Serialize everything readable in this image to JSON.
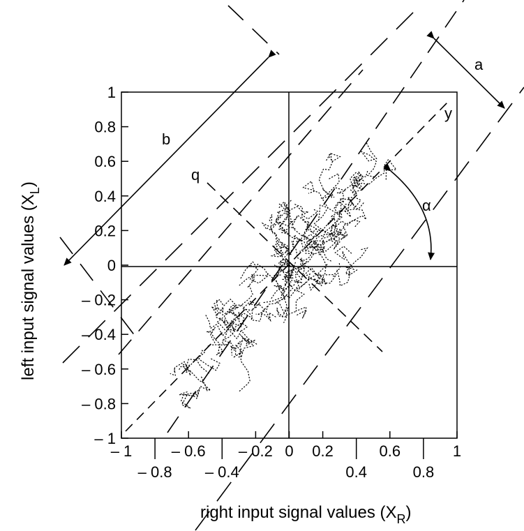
{
  "chart_data": {
    "type": "scatter",
    "xlabel": "right input signal values (X",
    "xlabel_sub": "R",
    "ylabel": "left input signal values (X",
    "ylabel_sub": "L",
    "xlim": [
      -1,
      1
    ],
    "ylim": [
      -1,
      1
    ],
    "grid": false,
    "xticks_upper": [
      {
        "v": -1,
        "label": "– 1"
      },
      {
        "v": -0.6,
        "label": "– 0.6"
      },
      {
        "v": -0.2,
        "label": "– 0.2"
      },
      {
        "v": 0,
        "label": "0"
      },
      {
        "v": 0.2,
        "label": "0.2"
      },
      {
        "v": 0.6,
        "label": "0.6"
      },
      {
        "v": 1,
        "label": "1"
      }
    ],
    "xticks_lower": [
      {
        "v": -0.8,
        "label": "– 0.8"
      },
      {
        "v": -0.4,
        "label": "– 0.4"
      },
      {
        "v": 0.4,
        "label": "0.4"
      },
      {
        "v": 0.8,
        "label": "0.8"
      }
    ],
    "yticks": [
      {
        "v": 1,
        "label": "1"
      },
      {
        "v": 0.8,
        "label": "0.8"
      },
      {
        "v": 0.6,
        "label": "0.6"
      },
      {
        "v": 0.4,
        "label": "0.4"
      },
      {
        "v": 0.2,
        "label": "0.2"
      },
      {
        "v": 0,
        "label": "0"
      },
      {
        "v": -0.2,
        "label": "– 0.2"
      },
      {
        "v": -0.4,
        "label": "– 0.4"
      },
      {
        "v": -0.6,
        "label": "– 0.6"
      },
      {
        "v": -0.8,
        "label": "– 0.8"
      },
      {
        "v": -1,
        "label": "– 1"
      }
    ],
    "annotations": {
      "a": "a",
      "b": "b",
      "q": "q",
      "y": "y",
      "alpha": "α"
    },
    "cluster": {
      "description_free": true,
      "main_axis_slope": 1,
      "centers": [
        [
          0.2,
          0.2
        ],
        [
          -0.3,
          -0.3
        ],
        [
          0.0,
          0.0
        ],
        [
          0.35,
          0.45
        ],
        [
          -0.5,
          -0.55
        ],
        [
          0.15,
          -0.1
        ],
        [
          -0.1,
          0.15
        ]
      ]
    }
  }
}
